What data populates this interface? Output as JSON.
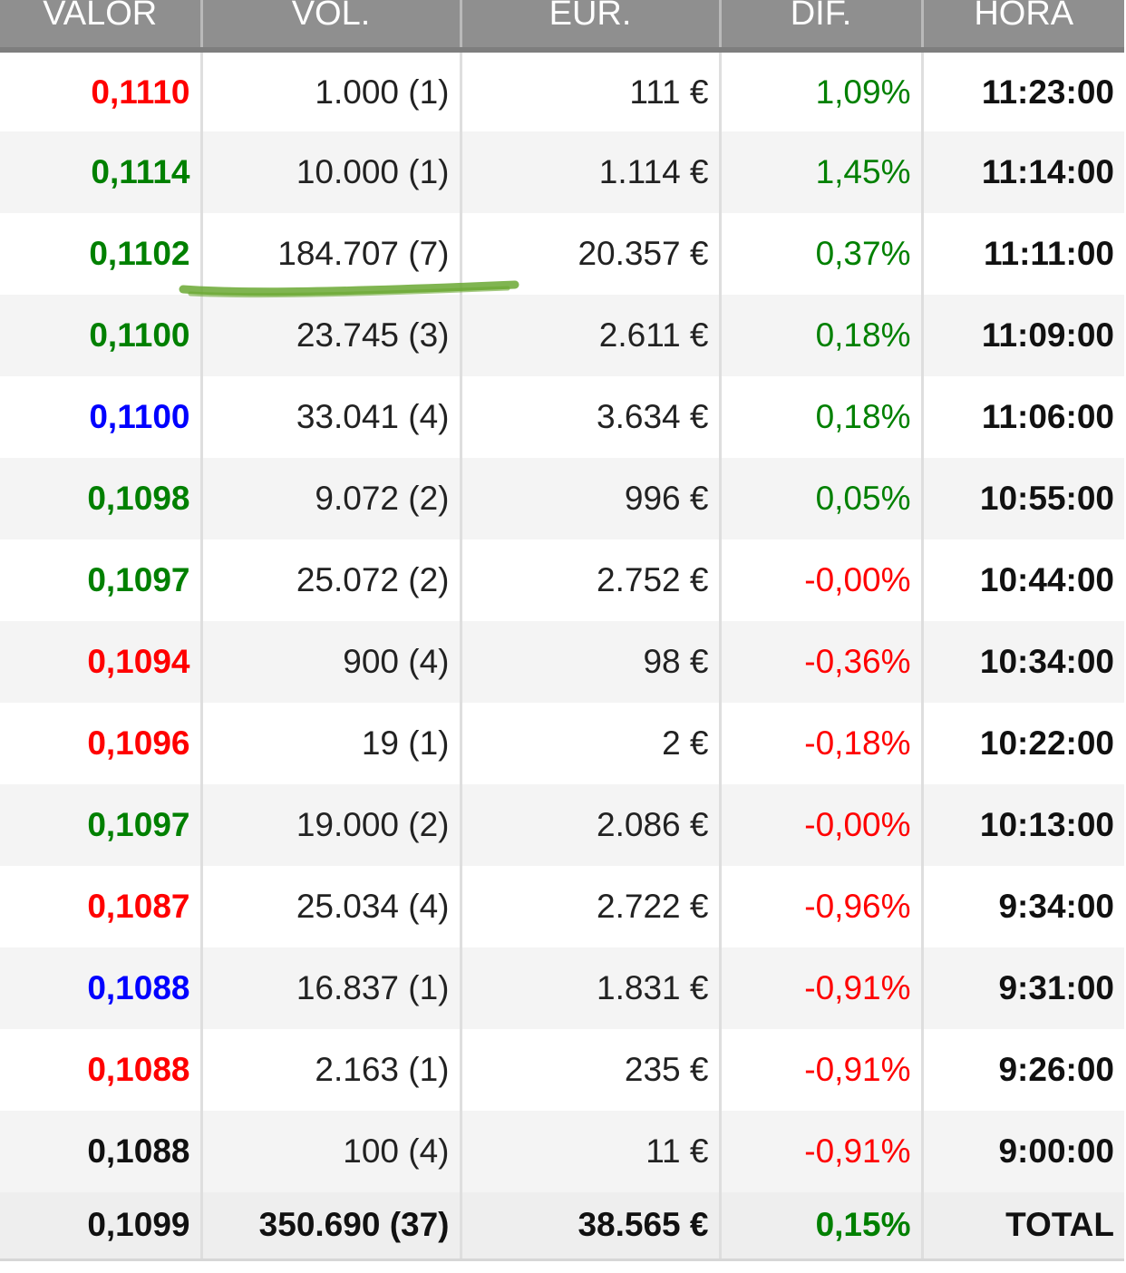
{
  "colors": {
    "red": "#ff0000",
    "green": "#008000",
    "blue": "#0000ff",
    "black": "#111111",
    "header_bg": "#8f8f8f",
    "mark": "#6aa832"
  },
  "headers": [
    "VALOR",
    "VOL.",
    "EUR.",
    "DIF.",
    "HORA"
  ],
  "rows": [
    {
      "valor": "0,1110",
      "valor_color": "red",
      "vol": "1.000 (1)",
      "eur": "111 €",
      "dif": "1,09%",
      "dif_color": "green",
      "hora": "11:23:00"
    },
    {
      "valor": "0,1114",
      "valor_color": "green",
      "vol": "10.000 (1)",
      "eur": "1.114 €",
      "dif": "1,45%",
      "dif_color": "green",
      "hora": "11:14:00"
    },
    {
      "valor": "0,1102",
      "valor_color": "green",
      "vol": "184.707 (7)",
      "eur": "20.357 €",
      "dif": "0,37%",
      "dif_color": "green",
      "hora": "11:11:00"
    },
    {
      "valor": "0,1100",
      "valor_color": "green",
      "vol": "23.745 (3)",
      "eur": "2.611 €",
      "dif": "0,18%",
      "dif_color": "green",
      "hora": "11:09:00"
    },
    {
      "valor": "0,1100",
      "valor_color": "blue",
      "vol": "33.041 (4)",
      "eur": "3.634 €",
      "dif": "0,18%",
      "dif_color": "green",
      "hora": "11:06:00"
    },
    {
      "valor": "0,1098",
      "valor_color": "green",
      "vol": "9.072 (2)",
      "eur": "996 €",
      "dif": "0,05%",
      "dif_color": "green",
      "hora": "10:55:00"
    },
    {
      "valor": "0,1097",
      "valor_color": "green",
      "vol": "25.072 (2)",
      "eur": "2.752 €",
      "dif": "-0,00%",
      "dif_color": "red",
      "hora": "10:44:00"
    },
    {
      "valor": "0,1094",
      "valor_color": "red",
      "vol": "900 (4)",
      "eur": "98 €",
      "dif": "-0,36%",
      "dif_color": "red",
      "hora": "10:34:00"
    },
    {
      "valor": "0,1096",
      "valor_color": "red",
      "vol": "19 (1)",
      "eur": "2 €",
      "dif": "-0,18%",
      "dif_color": "red",
      "hora": "10:22:00"
    },
    {
      "valor": "0,1097",
      "valor_color": "green",
      "vol": "19.000 (2)",
      "eur": "2.086 €",
      "dif": "-0,00%",
      "dif_color": "red",
      "hora": "10:13:00"
    },
    {
      "valor": "0,1087",
      "valor_color": "red",
      "vol": "25.034 (4)",
      "eur": "2.722 €",
      "dif": "-0,96%",
      "dif_color": "red",
      "hora": "9:34:00"
    },
    {
      "valor": "0,1088",
      "valor_color": "blue",
      "vol": "16.837 (1)",
      "eur": "1.831 €",
      "dif": "-0,91%",
      "dif_color": "red",
      "hora": "9:31:00"
    },
    {
      "valor": "0,1088",
      "valor_color": "red",
      "vol": "2.163 (1)",
      "eur": "235 €",
      "dif": "-0,91%",
      "dif_color": "red",
      "hora": "9:26:00"
    },
    {
      "valor": "0,1088",
      "valor_color": "black",
      "vol": "100 (4)",
      "eur": "11 €",
      "dif": "-0,91%",
      "dif_color": "red",
      "hora": "9:00:00"
    }
  ],
  "total": {
    "valor": "0,1099",
    "vol": "350.690 (37)",
    "eur": "38.565 €",
    "dif": "0,15%",
    "dif_color": "green",
    "hora": "TOTAL"
  }
}
